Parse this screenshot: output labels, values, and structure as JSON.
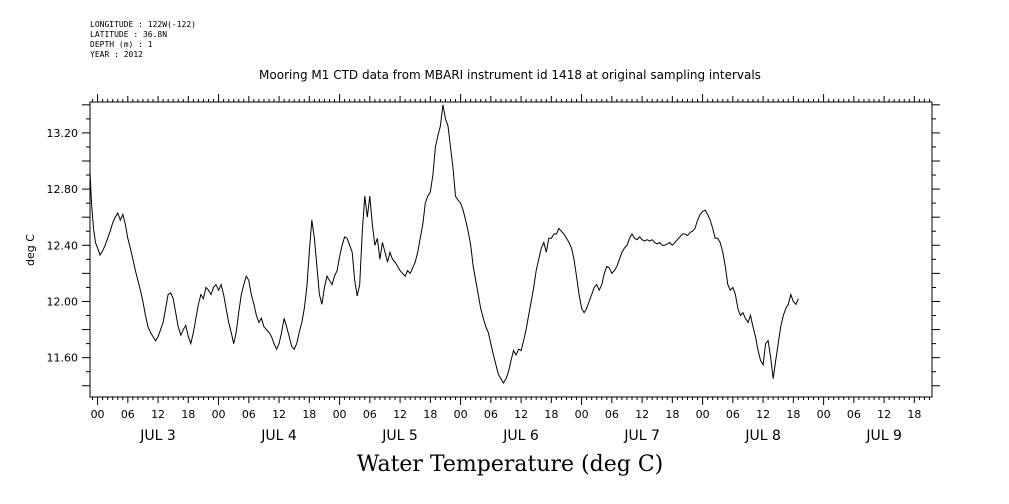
{
  "header": {
    "longitude": "LONGITUDE : 122W(-122)",
    "latitude": "LATITUDE : 36.8N",
    "depth": "DEPTH (m) : 1",
    "year": "YEAR : 2012"
  },
  "chart_data": {
    "type": "line",
    "title": "Mooring M1 CTD data from MBARI instrument id 1418 at original sampling intervals",
    "xlabel": "Water Temperature (deg C)",
    "ylabel": "deg C",
    "ylim": [
      11.32,
      13.42
    ],
    "yticks": [
      "11.60",
      "12.00",
      "12.40",
      "12.80",
      "13.20"
    ],
    "hour_ticks": [
      "00",
      "06",
      "12",
      "18",
      "00",
      "06",
      "12",
      "18",
      "00",
      "06",
      "12",
      "18",
      "00",
      "06",
      "12",
      "18",
      "00",
      "06",
      "12",
      "18",
      "00",
      "06",
      "12",
      "18",
      "00",
      "06",
      "12",
      "18"
    ],
    "day_labels": [
      "JUL 3",
      "JUL 4",
      "JUL 5",
      "JUL 6",
      "JUL 7",
      "JUL 8",
      "JUL 9"
    ],
    "xlim_hours": [
      -1.5,
      165.5
    ],
    "series": [
      {
        "points": [
          [
            -1.5,
            12.92
          ],
          [
            -1.2,
            12.7
          ],
          [
            -0.8,
            12.52
          ],
          [
            -0.4,
            12.42
          ],
          [
            0.0,
            12.38
          ],
          [
            0.5,
            12.33
          ],
          [
            1.0,
            12.36
          ],
          [
            1.5,
            12.4
          ],
          [
            2.0,
            12.45
          ],
          [
            2.5,
            12.5
          ],
          [
            3.0,
            12.56
          ],
          [
            3.5,
            12.6
          ],
          [
            4.0,
            12.63
          ],
          [
            4.5,
            12.58
          ],
          [
            5.0,
            12.62
          ],
          [
            5.5,
            12.55
          ],
          [
            6.0,
            12.45
          ],
          [
            6.5,
            12.38
          ],
          [
            7.0,
            12.3
          ],
          [
            7.5,
            12.22
          ],
          [
            8.0,
            12.15
          ],
          [
            8.5,
            12.08
          ],
          [
            9.0,
            12.0
          ],
          [
            9.5,
            11.9
          ],
          [
            10.0,
            11.82
          ],
          [
            10.5,
            11.78
          ],
          [
            11.0,
            11.75
          ],
          [
            11.5,
            11.72
          ],
          [
            12.0,
            11.75
          ],
          [
            12.5,
            11.8
          ],
          [
            13.0,
            11.85
          ],
          [
            13.5,
            11.95
          ],
          [
            14.0,
            12.05
          ],
          [
            14.5,
            12.06
          ],
          [
            15.0,
            12.02
          ],
          [
            15.5,
            11.92
          ],
          [
            16.0,
            11.82
          ],
          [
            16.5,
            11.76
          ],
          [
            17.0,
            11.8
          ],
          [
            17.5,
            11.83
          ],
          [
            18.0,
            11.75
          ],
          [
            18.5,
            11.7
          ],
          [
            19.0,
            11.78
          ],
          [
            19.5,
            11.88
          ],
          [
            20.0,
            11.98
          ],
          [
            20.5,
            12.05
          ],
          [
            21.0,
            12.02
          ],
          [
            21.5,
            12.1
          ],
          [
            22.0,
            12.08
          ],
          [
            22.5,
            12.05
          ],
          [
            23.0,
            12.1
          ],
          [
            23.5,
            12.12
          ],
          [
            24.0,
            12.08
          ],
          [
            24.5,
            12.12
          ],
          [
            25.0,
            12.05
          ],
          [
            25.5,
            11.95
          ],
          [
            26.0,
            11.85
          ],
          [
            26.5,
            11.78
          ],
          [
            27.0,
            11.7
          ],
          [
            27.5,
            11.78
          ],
          [
            28.0,
            11.92
          ],
          [
            28.5,
            12.05
          ],
          [
            29.0,
            12.12
          ],
          [
            29.5,
            12.18
          ],
          [
            30.0,
            12.15
          ],
          [
            30.5,
            12.05
          ],
          [
            31.0,
            11.98
          ],
          [
            31.5,
            11.9
          ],
          [
            32.0,
            11.85
          ],
          [
            32.5,
            11.88
          ],
          [
            33.0,
            11.82
          ],
          [
            33.5,
            11.8
          ],
          [
            34.0,
            11.78
          ],
          [
            34.5,
            11.75
          ],
          [
            35.0,
            11.7
          ],
          [
            35.5,
            11.66
          ],
          [
            36.0,
            11.7
          ],
          [
            36.5,
            11.78
          ],
          [
            37.0,
            11.88
          ],
          [
            37.5,
            11.82
          ],
          [
            38.0,
            11.75
          ],
          [
            38.5,
            11.68
          ],
          [
            39.0,
            11.66
          ],
          [
            39.5,
            11.7
          ],
          [
            40.0,
            11.78
          ],
          [
            40.5,
            11.85
          ],
          [
            41.0,
            11.95
          ],
          [
            41.5,
            12.1
          ],
          [
            42.0,
            12.35
          ],
          [
            42.5,
            12.58
          ],
          [
            43.0,
            12.45
          ],
          [
            43.5,
            12.25
          ],
          [
            44.0,
            12.05
          ],
          [
            44.5,
            11.98
          ],
          [
            45.0,
            12.1
          ],
          [
            45.5,
            12.18
          ],
          [
            46.0,
            12.15
          ],
          [
            46.5,
            12.12
          ],
          [
            47.0,
            12.18
          ],
          [
            47.5,
            12.22
          ],
          [
            48.0,
            12.32
          ],
          [
            48.5,
            12.4
          ],
          [
            49.0,
            12.46
          ],
          [
            49.5,
            12.45
          ],
          [
            50.0,
            12.4
          ],
          [
            50.5,
            12.35
          ],
          [
            51.0,
            12.15
          ],
          [
            51.5,
            12.04
          ],
          [
            52.0,
            12.12
          ],
          [
            52.5,
            12.5
          ],
          [
            53.0,
            12.75
          ],
          [
            53.5,
            12.6
          ],
          [
            54.0,
            12.75
          ],
          [
            54.5,
            12.55
          ],
          [
            55.0,
            12.4
          ],
          [
            55.5,
            12.45
          ],
          [
            56.0,
            12.3
          ],
          [
            56.5,
            12.42
          ],
          [
            57.0,
            12.35
          ],
          [
            57.5,
            12.28
          ],
          [
            58.0,
            12.35
          ],
          [
            58.5,
            12.3
          ],
          [
            59.0,
            12.28
          ],
          [
            59.5,
            12.25
          ],
          [
            60.0,
            12.22
          ],
          [
            60.5,
            12.2
          ],
          [
            61.0,
            12.18
          ],
          [
            61.5,
            12.22
          ],
          [
            62.0,
            12.2
          ],
          [
            62.5,
            12.24
          ],
          [
            63.0,
            12.28
          ],
          [
            63.5,
            12.35
          ],
          [
            64.0,
            12.45
          ],
          [
            64.5,
            12.55
          ],
          [
            65.0,
            12.7
          ],
          [
            65.5,
            12.75
          ],
          [
            66.0,
            12.78
          ],
          [
            66.5,
            12.9
          ],
          [
            67.0,
            13.1
          ],
          [
            67.5,
            13.18
          ],
          [
            68.0,
            13.25
          ],
          [
            68.5,
            13.4
          ],
          [
            69.0,
            13.3
          ],
          [
            69.5,
            13.25
          ],
          [
            70.0,
            13.1
          ],
          [
            70.5,
            12.95
          ],
          [
            71.0,
            12.75
          ],
          [
            71.5,
            12.72
          ],
          [
            72.0,
            12.7
          ],
          [
            72.5,
            12.65
          ],
          [
            73.0,
            12.58
          ],
          [
            73.5,
            12.5
          ],
          [
            74.0,
            12.4
          ],
          [
            74.5,
            12.25
          ],
          [
            75.0,
            12.15
          ],
          [
            75.5,
            12.05
          ],
          [
            76.0,
            11.95
          ],
          [
            76.5,
            11.88
          ],
          [
            77.0,
            11.82
          ],
          [
            77.5,
            11.78
          ],
          [
            78.0,
            11.7
          ],
          [
            78.5,
            11.62
          ],
          [
            79.0,
            11.55
          ],
          [
            79.5,
            11.48
          ],
          [
            80.0,
            11.45
          ],
          [
            80.5,
            11.42
          ],
          [
            81.0,
            11.45
          ],
          [
            81.5,
            11.5
          ],
          [
            82.0,
            11.58
          ],
          [
            82.5,
            11.65
          ],
          [
            83.0,
            11.62
          ],
          [
            83.5,
            11.66
          ],
          [
            84.0,
            11.65
          ],
          [
            84.5,
            11.72
          ],
          [
            85.0,
            11.8
          ],
          [
            85.5,
            11.9
          ],
          [
            86.0,
            12.0
          ],
          [
            86.5,
            12.1
          ],
          [
            87.0,
            12.22
          ],
          [
            87.5,
            12.3
          ],
          [
            88.0,
            12.38
          ],
          [
            88.5,
            12.42
          ],
          [
            89.0,
            12.35
          ],
          [
            89.5,
            12.45
          ],
          [
            90.0,
            12.45
          ],
          [
            90.5,
            12.48
          ],
          [
            91.0,
            12.48
          ],
          [
            91.5,
            12.52
          ],
          [
            92.0,
            12.5
          ],
          [
            92.5,
            12.48
          ],
          [
            93.0,
            12.45
          ],
          [
            93.5,
            12.42
          ],
          [
            94.0,
            12.38
          ],
          [
            94.5,
            12.3
          ],
          [
            95.0,
            12.18
          ],
          [
            95.5,
            12.05
          ],
          [
            96.0,
            11.95
          ],
          [
            96.5,
            11.92
          ],
          [
            97.0,
            11.95
          ],
          [
            97.5,
            12.0
          ],
          [
            98.0,
            12.05
          ],
          [
            98.5,
            12.1
          ],
          [
            99.0,
            12.12
          ],
          [
            99.5,
            12.08
          ],
          [
            100.0,
            12.12
          ],
          [
            100.5,
            12.2
          ],
          [
            101.0,
            12.25
          ],
          [
            101.5,
            12.24
          ],
          [
            102.0,
            12.2
          ],
          [
            102.5,
            12.22
          ],
          [
            103.0,
            12.25
          ],
          [
            103.5,
            12.3
          ],
          [
            104.0,
            12.35
          ],
          [
            104.5,
            12.38
          ],
          [
            105.0,
            12.4
          ],
          [
            105.5,
            12.45
          ],
          [
            106.0,
            12.48
          ],
          [
            106.5,
            12.45
          ],
          [
            107.0,
            12.44
          ],
          [
            107.5,
            12.46
          ],
          [
            108.0,
            12.44
          ],
          [
            108.5,
            12.43
          ],
          [
            109.0,
            12.44
          ],
          [
            109.5,
            12.43
          ],
          [
            110.0,
            12.44
          ],
          [
            110.5,
            12.42
          ],
          [
            111.0,
            12.41
          ],
          [
            111.5,
            12.42
          ],
          [
            112.0,
            12.4
          ],
          [
            112.5,
            12.4
          ],
          [
            113.0,
            12.41
          ],
          [
            113.5,
            12.42
          ],
          [
            114.0,
            12.4
          ],
          [
            114.5,
            12.42
          ],
          [
            115.0,
            12.44
          ],
          [
            115.5,
            12.46
          ],
          [
            116.0,
            12.48
          ],
          [
            116.5,
            12.48
          ],
          [
            117.0,
            12.47
          ],
          [
            117.5,
            12.49
          ],
          [
            118.0,
            12.5
          ],
          [
            118.5,
            12.52
          ],
          [
            119.0,
            12.58
          ],
          [
            119.5,
            12.62
          ],
          [
            120.0,
            12.64
          ],
          [
            120.5,
            12.65
          ],
          [
            121.0,
            12.62
          ],
          [
            121.5,
            12.58
          ],
          [
            122.0,
            12.52
          ],
          [
            122.5,
            12.45
          ],
          [
            123.0,
            12.45
          ],
          [
            123.5,
            12.42
          ],
          [
            124.0,
            12.35
          ],
          [
            124.5,
            12.25
          ],
          [
            125.0,
            12.12
          ],
          [
            125.5,
            12.08
          ],
          [
            126.0,
            12.1
          ],
          [
            126.5,
            12.05
          ],
          [
            127.0,
            11.95
          ],
          [
            127.5,
            11.9
          ],
          [
            128.0,
            11.92
          ],
          [
            128.5,
            11.88
          ],
          [
            129.0,
            11.85
          ],
          [
            129.5,
            11.9
          ],
          [
            130.0,
            11.82
          ],
          [
            130.5,
            11.75
          ],
          [
            131.0,
            11.65
          ],
          [
            131.5,
            11.58
          ],
          [
            132.0,
            11.55
          ],
          [
            132.5,
            11.7
          ],
          [
            133.0,
            11.72
          ],
          [
            133.5,
            11.6
          ],
          [
            134.0,
            11.45
          ],
          [
            134.5,
            11.58
          ],
          [
            135.0,
            11.7
          ],
          [
            135.5,
            11.82
          ],
          [
            136.0,
            11.9
          ],
          [
            136.5,
            11.95
          ],
          [
            137.0,
            11.98
          ],
          [
            137.5,
            12.05
          ],
          [
            138.0,
            12.0
          ],
          [
            138.5,
            11.98
          ],
          [
            139.0,
            12.02
          ]
        ]
      }
    ]
  }
}
